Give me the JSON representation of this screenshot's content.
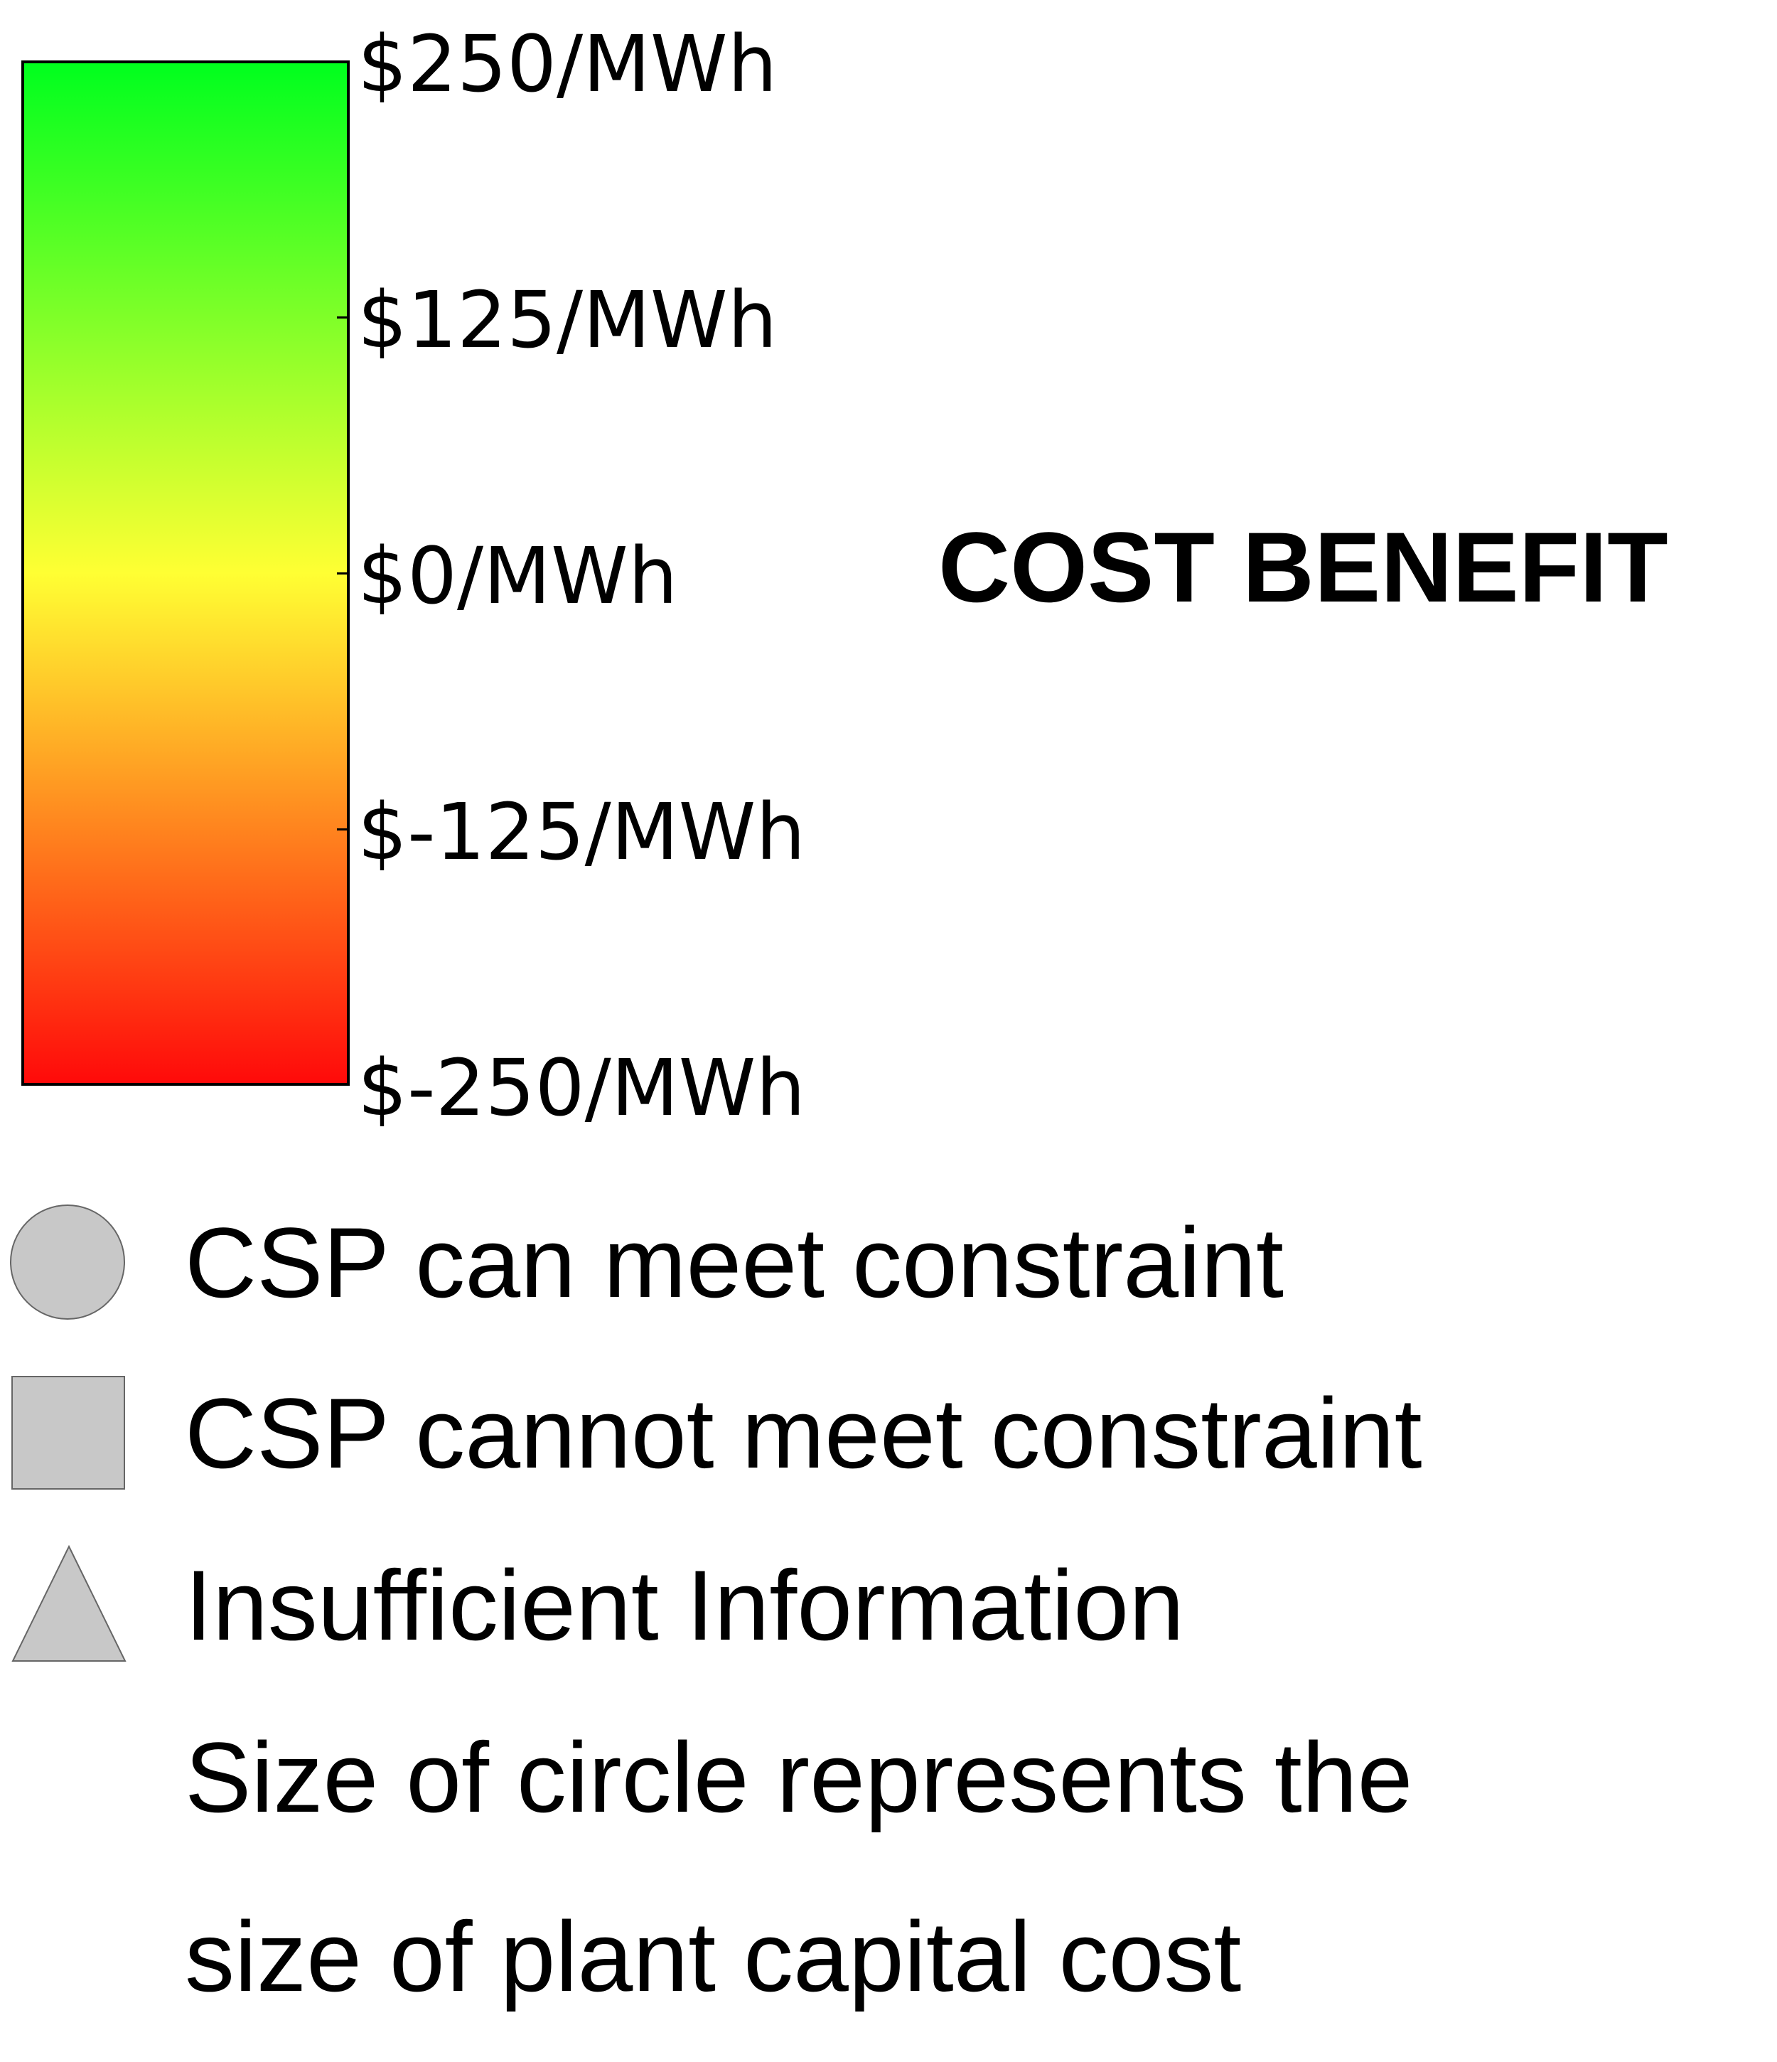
{
  "colorbar": {
    "stops": [
      {
        "value": 250,
        "color": "#00ff1e"
      },
      {
        "value": 0,
        "color": "#ffff33"
      },
      {
        "value": -250,
        "color": "#ff0a0a"
      }
    ],
    "ticks": [
      {
        "value": 250,
        "label": "$250/MWh"
      },
      {
        "value": 125,
        "label": "$125/MWh"
      },
      {
        "value": 0,
        "label": "$0/MWh"
      },
      {
        "value": -125,
        "label": "$-125/MWh"
      },
      {
        "value": -250,
        "label": "$-250/MWh"
      }
    ]
  },
  "title": "COST BENEFIT",
  "legend": {
    "marker_color": "#c8c8c8",
    "items": [
      {
        "icon": "circle-icon",
        "label": "CSP can meet constraint"
      },
      {
        "icon": "square-icon",
        "label": "CSP cannot meet constraint"
      },
      {
        "icon": "triangle-icon",
        "label": "Insufficient Information"
      }
    ],
    "note_line1": "Size of circle represents the",
    "note_line2": "size of plant capital cost"
  }
}
